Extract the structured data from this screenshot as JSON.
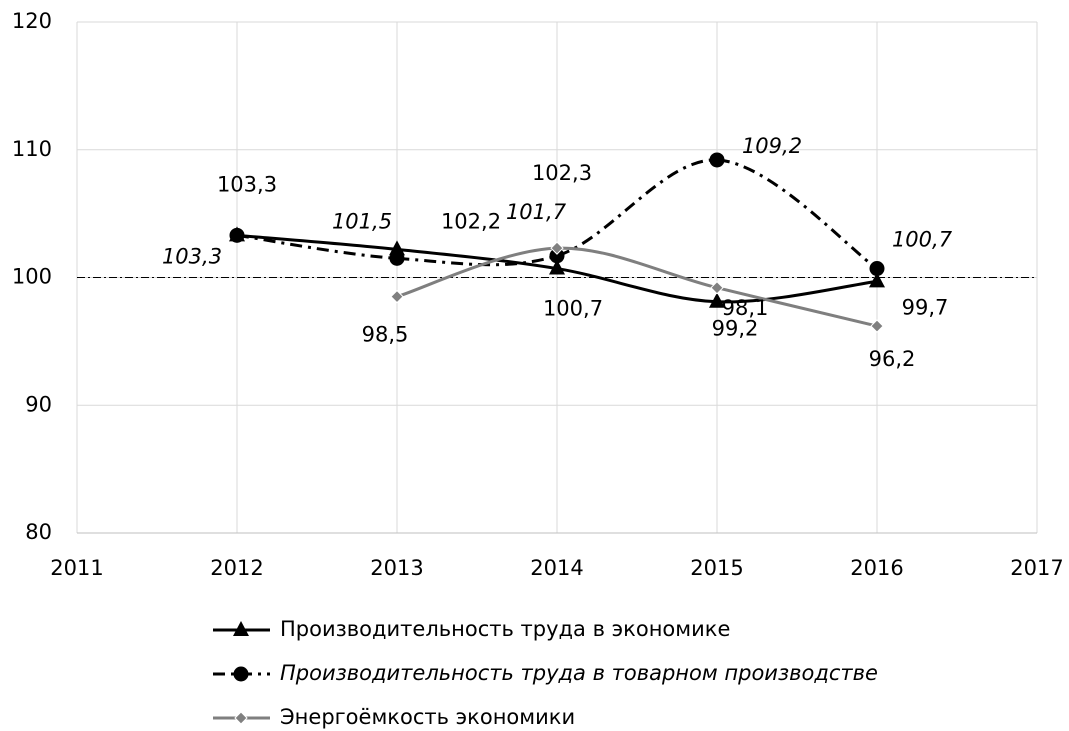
{
  "chart_data": {
    "type": "line",
    "x": [
      2012,
      2013,
      2014,
      2015,
      2016
    ],
    "xlim": [
      2011,
      2017
    ],
    "xticks": [
      2011,
      2012,
      2013,
      2014,
      2015,
      2016,
      2017
    ],
    "ylim": [
      80,
      120
    ],
    "yticks": [
      80,
      90,
      100,
      110,
      120
    ],
    "grid": true,
    "hline": 100,
    "legend": "bottom",
    "series": [
      {
        "name": "Производительность труда в экономике",
        "color": "#000000",
        "marker": "triangle",
        "dash": "solid",
        "values": [
          103.3,
          102.2,
          100.7,
          98.1,
          99.7
        ],
        "value_labels": [
          "103,3",
          "102,2",
          "100,7",
          "98,1",
          "99,7"
        ]
      },
      {
        "name": "Производительность труда в товарном производстве",
        "color": "#000000",
        "marker": "circle",
        "dash": "dashdot",
        "italic": true,
        "values": [
          103.3,
          101.5,
          101.7,
          109.2,
          100.7
        ],
        "value_labels": [
          "103,3",
          "101,5",
          "101,7",
          "109,2",
          "100,7"
        ]
      },
      {
        "name": "Энергоёмкость экономики",
        "color": "#808080",
        "marker": "diamond",
        "dash": "solid",
        "values": [
          null,
          98.5,
          102.3,
          99.2,
          96.2
        ],
        "value_labels": [
          null,
          "98,5",
          "102,3",
          "99,2",
          "96,2"
        ]
      }
    ]
  }
}
